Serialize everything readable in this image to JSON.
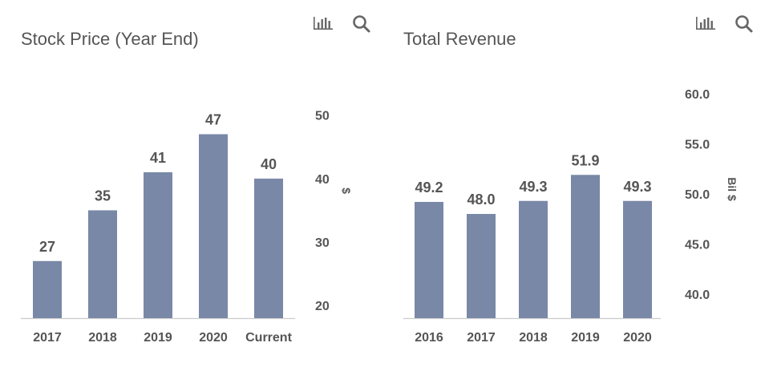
{
  "colors": {
    "bar": "#7988a7",
    "axis": "#cccccc",
    "text": "#555555"
  },
  "toolbar": {
    "bars_icon": "bar-chart-icon",
    "search_icon": "search-icon"
  },
  "chart_data": [
    {
      "type": "bar",
      "title": "Stock Price (Year End)",
      "categories": [
        "2017",
        "2018",
        "2019",
        "2020",
        "Current"
      ],
      "values": [
        27,
        35,
        41,
        47,
        40
      ],
      "data_labels": [
        "27",
        "35",
        "41",
        "47",
        "40"
      ],
      "ylabel": "$",
      "yticks": [
        "20",
        "30",
        "40",
        "50"
      ],
      "ytick_values": [
        20,
        30,
        40,
        50
      ],
      "ylim": [
        18,
        53
      ],
      "y_axis_side": "right",
      "grid": false,
      "legend": "none"
    },
    {
      "type": "bar",
      "title": "Total Revenue",
      "categories": [
        "2016",
        "2017",
        "2018",
        "2019",
        "2020"
      ],
      "values": [
        49.2,
        48.0,
        49.3,
        51.9,
        49.3
      ],
      "data_labels": [
        "49.2",
        "48.0",
        "49.3",
        "51.9",
        "49.3"
      ],
      "ylabel": "Bil $",
      "yticks": [
        "40.0",
        "45.0",
        "50.0",
        "55.0",
        "60.0"
      ],
      "ytick_values": [
        40,
        45,
        50,
        55,
        60
      ],
      "ylim": [
        37.6,
        61.2
      ],
      "y_axis_side": "right",
      "grid": false,
      "legend": "none"
    }
  ]
}
